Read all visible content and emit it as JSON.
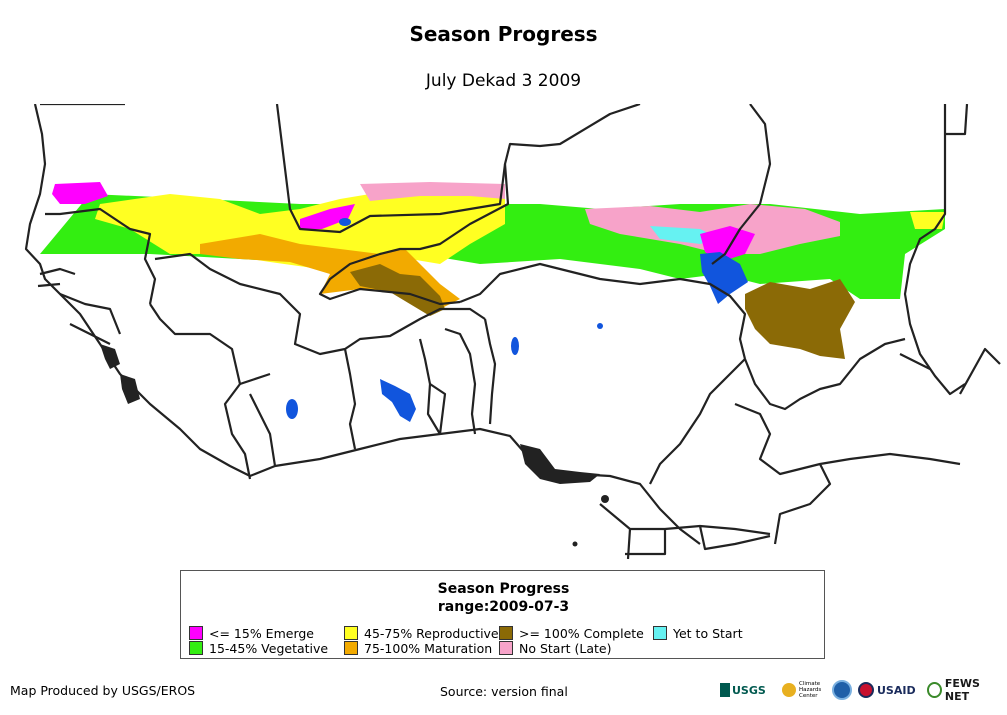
{
  "header": {
    "title": "Season Progress",
    "subtitle": "July Dekad 3 2009"
  },
  "legend": {
    "title": "Season Progress",
    "range": "range:2009-07-3",
    "items": [
      {
        "label": "<= 15% Emerge",
        "color": "#ff00ff"
      },
      {
        "label": "15-45% Vegetative",
        "color": "#33ee11"
      },
      {
        "label": "45-75% Reproductive",
        "color": "#ffff22"
      },
      {
        "label": "75-100% Maturation",
        "color": "#f2aa00"
      },
      {
        "label": ">= 100% Complete",
        "color": "#8b6a06"
      },
      {
        "label": "No Start (Late)",
        "color": "#f7a3c9"
      },
      {
        "label": "Yet to Start",
        "color": "#66f2f2"
      }
    ]
  },
  "map_colors": {
    "water": "#1155dd",
    "border": "#222222",
    "land": "#ffffff"
  },
  "footer": {
    "produced_by": "Map Produced by USGS/EROS",
    "source": "Source: version final"
  },
  "logos": {
    "usgs": "USGS",
    "chc": "Climate Hazards Center",
    "noaa_icon": "noaa-logo-icon",
    "usaid": "USAID",
    "fews": "FEWS NET"
  }
}
